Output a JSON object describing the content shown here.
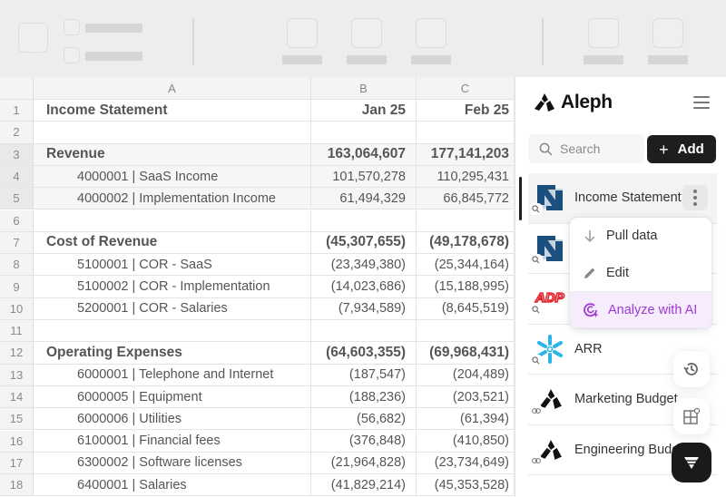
{
  "sheet": {
    "columns": [
      "A",
      "B",
      "C"
    ],
    "rows": [
      {
        "n": "1",
        "label": "Income Statement",
        "jan": "Jan 25",
        "feb": "Feb 25",
        "type": "title"
      },
      {
        "n": "2",
        "label": "",
        "jan": "",
        "feb": "",
        "type": "blank"
      },
      {
        "n": "3",
        "label": "Revenue",
        "jan": "163,064,607",
        "feb": "177,141,203",
        "type": "section"
      },
      {
        "n": "4",
        "label": "4000001 | SaaS Income",
        "jan": "101,570,278",
        "feb": "110,295,431",
        "type": "line"
      },
      {
        "n": "5",
        "label": "4000002 | Implementation Income",
        "jan": "61,494,329",
        "feb": "66,845,772",
        "type": "line"
      },
      {
        "n": "6",
        "label": "",
        "jan": "",
        "feb": "",
        "type": "blank"
      },
      {
        "n": "7",
        "label": "Cost of Revenue",
        "jan": "(45,307,655)",
        "feb": "(49,178,678)",
        "type": "section"
      },
      {
        "n": "8",
        "label": "5100001 | COR - SaaS",
        "jan": "(23,349,380)",
        "feb": "(25,344,164)",
        "type": "line"
      },
      {
        "n": "9",
        "label": "5100002 | COR - Implementation",
        "jan": "(14,023,686)",
        "feb": "(15,188,995)",
        "type": "line"
      },
      {
        "n": "10",
        "label": "5200001 | COR - Salaries",
        "jan": "(7,934,589)",
        "feb": "(8,645,519)",
        "type": "line"
      },
      {
        "n": "11",
        "label": "",
        "jan": "",
        "feb": "",
        "type": "blank"
      },
      {
        "n": "12",
        "label": "Operating Expenses",
        "jan": "(64,603,355)",
        "feb": "(69,968,431)",
        "type": "section"
      },
      {
        "n": "13",
        "label": "6000001 | Telephone and Internet",
        "jan": "(187,547)",
        "feb": "(204,489)",
        "type": "line"
      },
      {
        "n": "14",
        "label": "6000005 | Equipment",
        "jan": "(188,236)",
        "feb": "(203,521)",
        "type": "line"
      },
      {
        "n": "15",
        "label": "6000006 | Utilities",
        "jan": "(56,682)",
        "feb": "(61,394)",
        "type": "line"
      },
      {
        "n": "16",
        "label": "6100001 | Financial fees",
        "jan": "(376,848)",
        "feb": "(410,850)",
        "type": "line"
      },
      {
        "n": "17",
        "label": "6300002 | Software licenses",
        "jan": "(21,964,828)",
        "feb": "(23,734,649)",
        "type": "line"
      },
      {
        "n": "18",
        "label": "6400001 | Salaries",
        "jan": "(41,829,214)",
        "feb": "(45,353,528)",
        "type": "line"
      }
    ],
    "selected_rows": [
      "3",
      "4",
      "5"
    ]
  },
  "sidebar": {
    "brand": "Aleph",
    "search_placeholder": "Search",
    "add_label": "Add",
    "add_icon": "+",
    "items": [
      {
        "name": "Income Statement",
        "source": "netsuite-icon",
        "badge": "search-icon",
        "active": true
      },
      {
        "name": "",
        "source": "netsuite-icon",
        "badge": "search-icon"
      },
      {
        "name": "",
        "source": "adp-icon",
        "badge": "search-icon"
      },
      {
        "name": "ARR",
        "source": "snowflake-icon",
        "badge": "search-icon"
      },
      {
        "name": "Marketing Budget",
        "source": "aleph-icon",
        "badge": "link-icon"
      },
      {
        "name": "Engineering Budget",
        "source": "aleph-icon",
        "badge": "link-icon"
      }
    ],
    "menu": {
      "items": [
        {
          "label": "Pull data",
          "icon": "arrow-down-icon"
        },
        {
          "label": "Edit",
          "icon": "pencil-icon"
        },
        {
          "label": "Analyze with AI",
          "icon": "ai-sparkle-icon"
        }
      ]
    },
    "floating": [
      "history-icon",
      "grid-add-icon",
      "funnel-icon"
    ]
  },
  "colors": {
    "accent_dark": "#1e1e1e",
    "ai_purple": "#9c3ad6",
    "ai_bg": "#f7ecfc",
    "netsuite_blue": "#1b4f7d",
    "snowflake_blue": "#29b5e8",
    "adp_red": "#e3262d"
  }
}
